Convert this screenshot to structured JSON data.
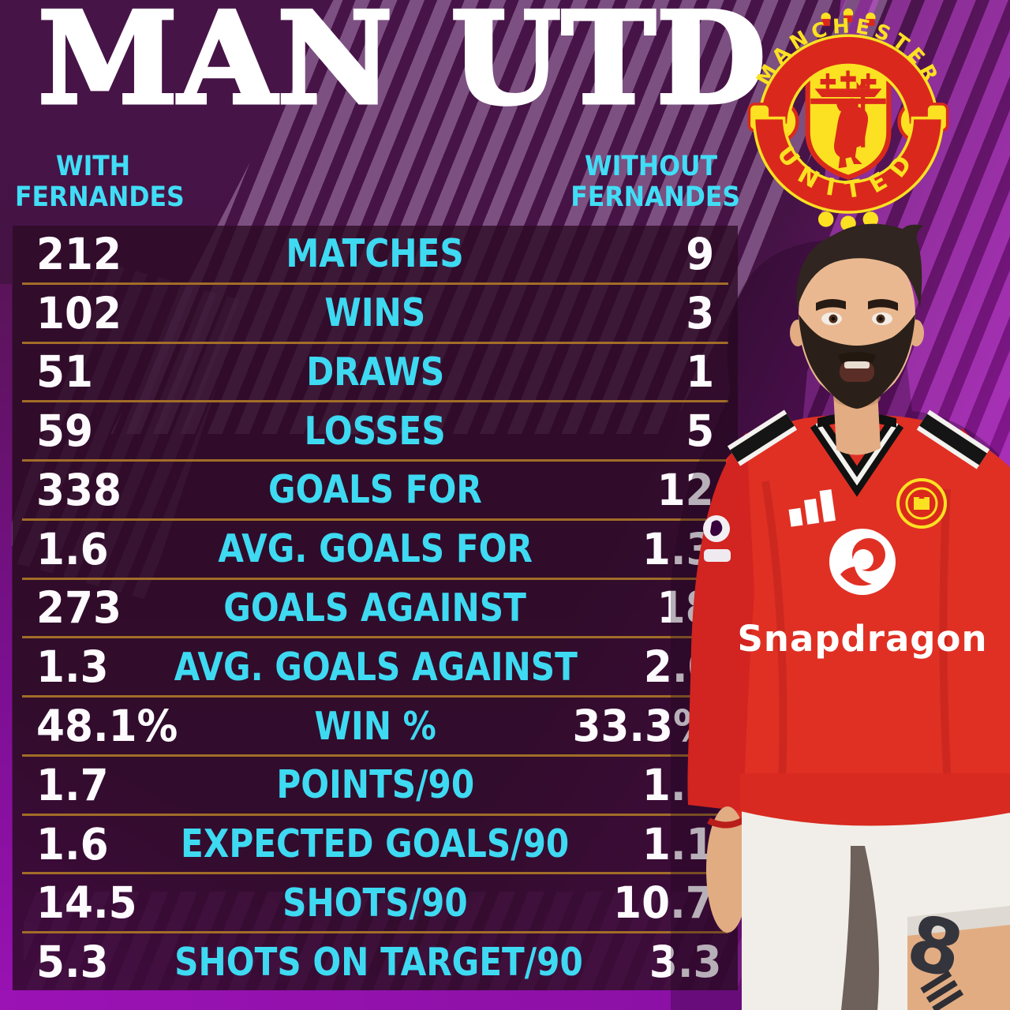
{
  "title": "MAN UTD",
  "columns": {
    "left": {
      "line1": "WITH",
      "line2": "FERNANDES"
    },
    "right": {
      "line1": "WITHOUT",
      "line2": "FERNANDES"
    }
  },
  "crest": {
    "top_banner": "MANCHESTER",
    "bottom_banner": "UNITED"
  },
  "player": {
    "shirt_sponsor": "Snapdragon",
    "shirt_number": "8"
  },
  "chart_data": {
    "type": "table",
    "title": "MAN UTD",
    "columns": [
      "WITH FERNANDES",
      "STAT",
      "WITHOUT FERNANDES"
    ],
    "rows": [
      [
        "212",
        "MATCHES",
        "9"
      ],
      [
        "102",
        "WINS",
        "3"
      ],
      [
        "51",
        "DRAWS",
        "1"
      ],
      [
        "59",
        "LOSSES",
        "5"
      ],
      [
        "338",
        "GOALS FOR",
        "12"
      ],
      [
        "1.6",
        "AVG. GOALS FOR",
        "1.3"
      ],
      [
        "273",
        "GOALS AGAINST",
        "18"
      ],
      [
        "1.3",
        "AVG. GOALS AGAINST",
        "2.0"
      ],
      [
        "48.1%",
        "WIN %",
        "33.3%"
      ],
      [
        "1.7",
        "POINTS/90",
        "1.1"
      ],
      [
        "1.6",
        "EXPECTED GOALS/90",
        "1.1"
      ],
      [
        "14.5",
        "SHOTS/90",
        "10.7"
      ],
      [
        "5.3",
        "SHOTS ON TARGET/90",
        "3.3"
      ]
    ]
  },
  "colors": {
    "accent_cyan": "#3EDAF2",
    "divider_gold": "#A26D28",
    "crest_red": "#DA291C",
    "crest_yellow": "#FBE122",
    "jersey_red": "#E03024",
    "background_purple": "#471448",
    "bright_magenta": "#AB18BE"
  }
}
